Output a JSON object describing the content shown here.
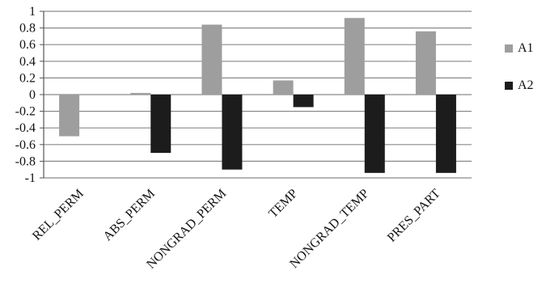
{
  "chart_data": {
    "type": "bar",
    "categories": [
      "REL_PERM",
      "ABS_PERM",
      "NONGRAD_PERM",
      "TEMP",
      "NONGRAD_TEMP",
      "PRES_PART"
    ],
    "series": [
      {
        "name": "A1",
        "color": "#9e9e9e",
        "values": [
          -0.5,
          0.02,
          0.84,
          0.17,
          0.92,
          0.76
        ]
      },
      {
        "name": "A2",
        "color": "#1c1c1c",
        "values": [
          0,
          -0.7,
          -0.9,
          -0.15,
          -0.94,
          -0.94
        ]
      }
    ],
    "y_ticks": [
      "1",
      "0.8",
      "0.6",
      "0.4",
      "0.2",
      "0",
      "-0.2",
      "-0.4",
      "-0.6",
      "-0.8",
      "-1"
    ],
    "ylim": [
      -1,
      1
    ],
    "grid": true,
    "legend_position": "right",
    "title": "",
    "xlabel": "",
    "ylabel": ""
  }
}
